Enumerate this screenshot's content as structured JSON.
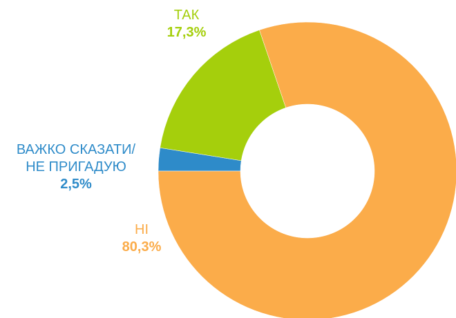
{
  "chart_data": {
    "type": "donut",
    "categories": [
      "ВАЖКО СКАЗАТИ/\nНЕ ПРИГАДУЮ",
      "ТАК",
      "НІ"
    ],
    "values": [
      2.5,
      17.3,
      80.3
    ],
    "value_labels": [
      "2,5%",
      "17,3%",
      "80,3%"
    ],
    "colors": [
      "#2e8bc9",
      "#a5cf0c",
      "#fbac4a"
    ]
  }
}
